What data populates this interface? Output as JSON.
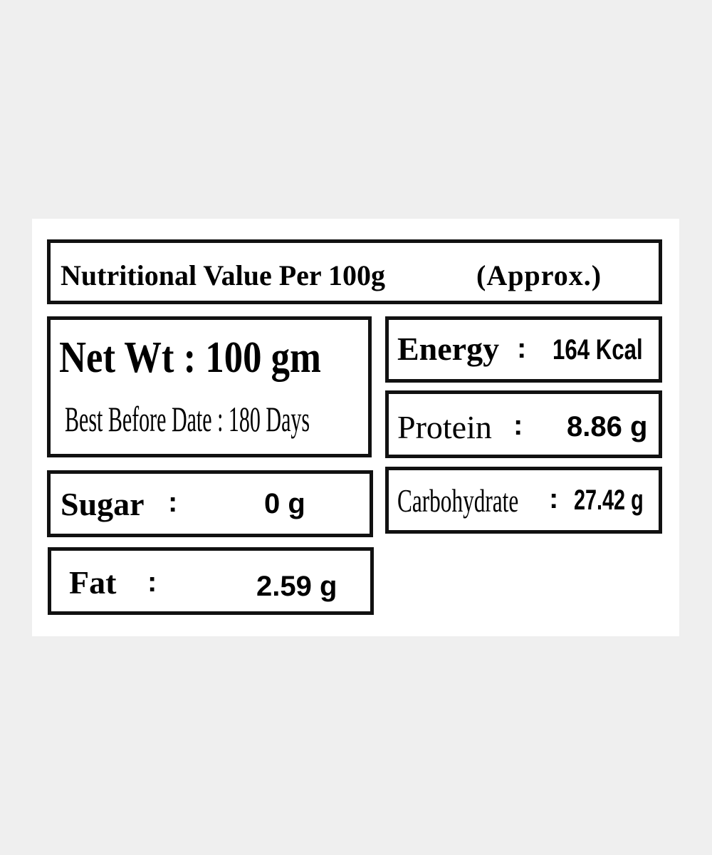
{
  "title": "Nutritional Value Per 100g",
  "title_note": "(Approx.)",
  "net_wt": "Net Wt : 100 gm",
  "best_before": "Best Before Date : 180 Days",
  "rows": {
    "energy": {
      "label": "Energy",
      "sep": ":",
      "value": "164 Kcal"
    },
    "protein": {
      "label": "Protein",
      "sep": ":",
      "value": "8.86 g"
    },
    "carbohydrate": {
      "label": "Carbohydrate",
      "sep": ":",
      "value": "27.42 g"
    },
    "sugar": {
      "label": "Sugar",
      "sep": ":",
      "value": "0 g"
    },
    "fat": {
      "label": "Fat",
      "sep": ":",
      "value": "2.59 g"
    }
  }
}
